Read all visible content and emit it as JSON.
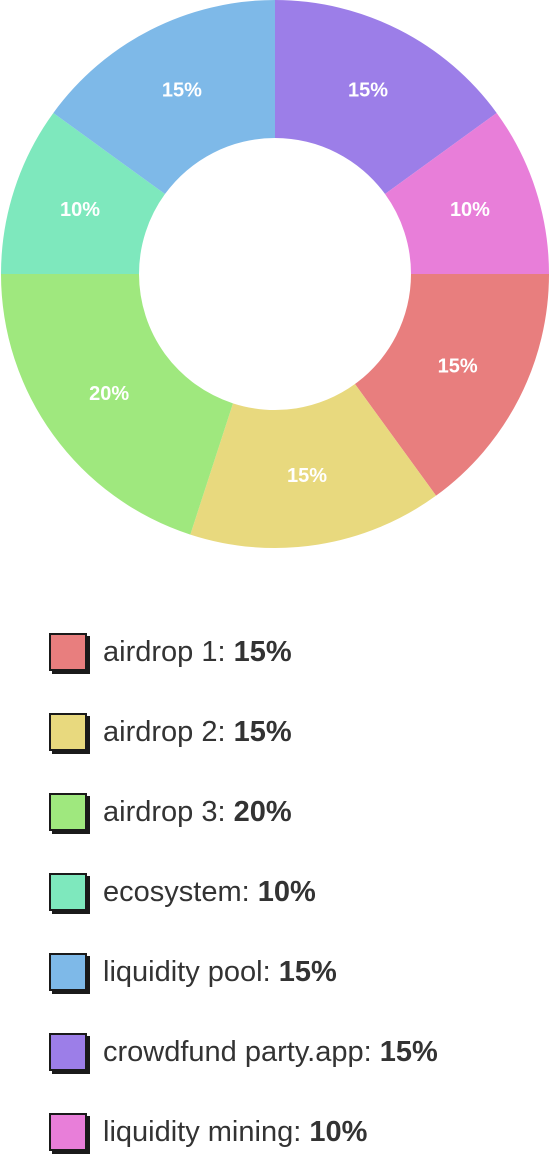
{
  "chart_data": {
    "type": "pie",
    "donut": true,
    "title": "",
    "unit": "%",
    "slices": [
      {
        "name": "airdrop 1",
        "value": 15,
        "color": "#E87E7E"
      },
      {
        "name": "airdrop 2",
        "value": 15,
        "color": "#E8D97E"
      },
      {
        "name": "airdrop 3",
        "value": 20,
        "color": "#9FE87E"
      },
      {
        "name": "ecosystem",
        "value": 10,
        "color": "#7EE8BD"
      },
      {
        "name": "liquidity pool",
        "value": 15,
        "color": "#7EB9E8"
      },
      {
        "name": "crowdfund party.app",
        "value": 15,
        "color": "#9C7EE8"
      },
      {
        "name": "liquidity mining",
        "value": 10,
        "color": "#E87ED9"
      }
    ],
    "legend_placement": "bottom"
  }
}
